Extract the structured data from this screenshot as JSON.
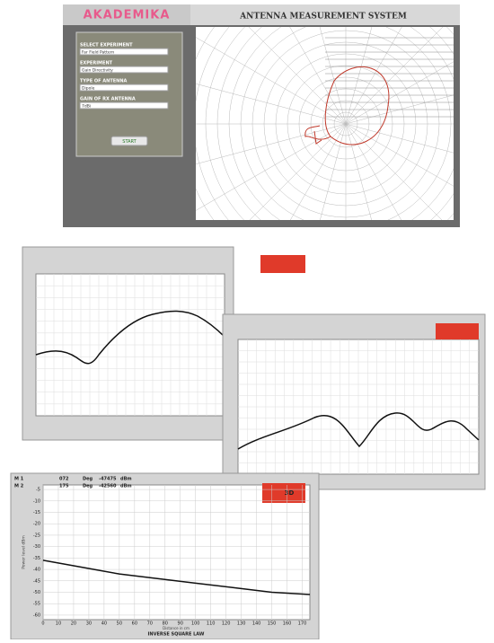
{
  "app": {
    "logo": "AKADEMIKA",
    "title": "ANTENNA MEASUREMENT SYSTEM",
    "fields": [
      {
        "label": "SELECT EXPERIMENT",
        "value": "Far Field Pattern"
      },
      {
        "label": "EXPERIMENT",
        "value": "Gain Directivity"
      },
      {
        "label": "TYPE OF ANTENNA",
        "value": "Dipole"
      },
      {
        "label": "GAIN OF RX ANTENNA",
        "value": "7dBi"
      }
    ],
    "button": "START"
  },
  "chart_data": {
    "type": "line",
    "title": "INVERSE SQUARE LAW",
    "xlabel": "Distance in cm",
    "ylabel": "Power level dBm",
    "badge": "3D",
    "markers": [
      [
        "M 1",
        "072",
        "Deg",
        "-47475",
        "dBm"
      ],
      [
        "M 2",
        "175",
        "Deg",
        "-42560",
        "dBm"
      ]
    ],
    "x": [
      0,
      25,
      50,
      75,
      100,
      125,
      150,
      175
    ],
    "series": [
      {
        "name": "Power",
        "color": "#111111",
        "values": [
          -36,
          -39,
          -42,
          -44,
          -46,
          -48,
          -50,
          -51
        ]
      }
    ],
    "xlim": [
      0,
      175
    ],
    "xticks": [
      0,
      10,
      20,
      30,
      40,
      50,
      60,
      70,
      80,
      90,
      100,
      110,
      120,
      130,
      140,
      150,
      160,
      170
    ],
    "ylim": [
      -62,
      -3
    ],
    "yticks": [
      -5,
      -10,
      -15,
      -20,
      -25,
      -30,
      -35,
      -40,
      -45,
      -50,
      -55,
      -60
    ],
    "grid": true
  }
}
